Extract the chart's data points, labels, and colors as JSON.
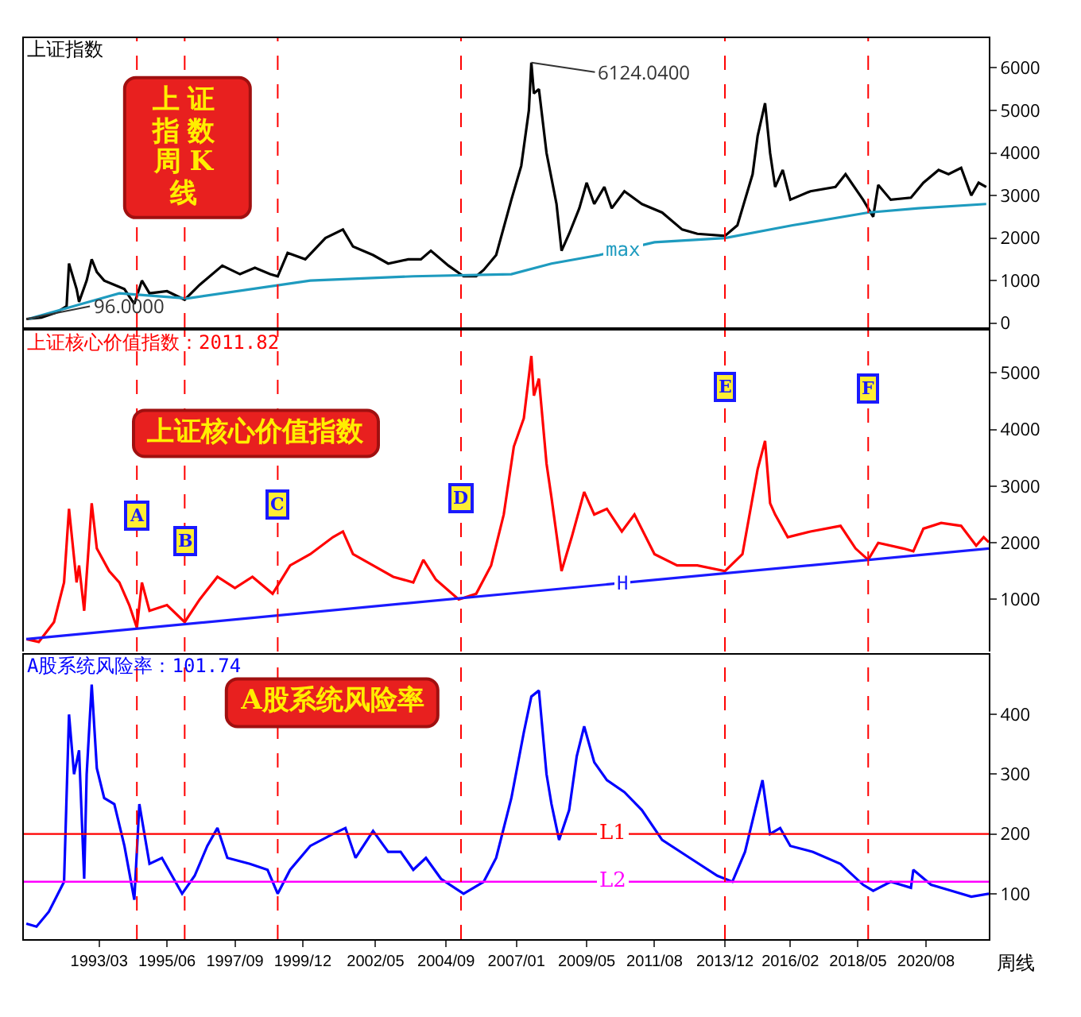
{
  "chart_data": [
    {
      "type": "line",
      "title": "上证指数",
      "xlim": [
        "1990-09",
        "2022-09"
      ],
      "tick_labels": "y",
      "ylim": [
        -100,
        6700
      ],
      "yticks": [
        0,
        1000,
        2000,
        3000,
        4000,
        5000,
        6000
      ],
      "series": [
        {
          "color": "#000000",
          "x": [
            "1990-10",
            "1991-04",
            "1991-10",
            "1992-02",
            "1992-03",
            "1992-06",
            "1992-07",
            "1992-10",
            "1992-12",
            "1993-02",
            "1993-05",
            "1993-09",
            "1994-01",
            "1994-05",
            "1994-08",
            "1994-11",
            "1995-06",
            "1996-01",
            "1996-07",
            "1997-04",
            "1997-11",
            "1998-05",
            "1998-11",
            "1999-02",
            "1999-06",
            "2000-01",
            "2000-09",
            "2001-04",
            "2001-08",
            "2002-04",
            "2002-10",
            "2003-06",
            "2003-11",
            "2004-03",
            "2004-10",
            "2005-04",
            "2005-09",
            "2005-12",
            "2006-05",
            "2006-11",
            "2007-03",
            "2007-06",
            "2007-07",
            "2007-08",
            "2007-10",
            "2008-01",
            "2008-05",
            "2008-07",
            "2008-10",
            "2009-02",
            "2009-05",
            "2009-08",
            "2009-12",
            "2010-03",
            "2010-08",
            "2011-03",
            "2011-11",
            "2012-07",
            "2013-01",
            "2013-12",
            "2014-05",
            "2014-11",
            "2015-01",
            "2015-04",
            "2015-06",
            "2015-08",
            "2015-11",
            "2016-02",
            "2016-10",
            "2017-08",
            "2017-12",
            "2018-07",
            "2018-11",
            "2019-01",
            "2019-06",
            "2020-02",
            "2020-07",
            "2021-01",
            "2021-05",
            "2021-10",
            "2022-02",
            "2022-05",
            "2022-08"
          ],
          "values": [
            96,
            130,
            250,
            400,
            1400,
            800,
            500,
            1000,
            1500,
            1200,
            1000,
            900,
            800,
            450,
            1000,
            700,
            750,
            550,
            900,
            1350,
            1150,
            1300,
            1150,
            1100,
            1650,
            1500,
            2000,
            2200,
            1800,
            1600,
            1400,
            1500,
            1500,
            1700,
            1350,
            1100,
            1100,
            1250,
            1600,
            2900,
            3700,
            5000,
            6124,
            5400,
            5500,
            4000,
            2800,
            1700,
            2100,
            2700,
            3300,
            2800,
            3200,
            2700,
            3100,
            2800,
            2600,
            2200,
            2100,
            2050,
            2300,
            3500,
            4400,
            5170,
            4000,
            3200,
            3600,
            2900,
            3100,
            3200,
            3500,
            2900,
            2500,
            3250,
            2900,
            2950,
            3300,
            3600,
            3500,
            3650,
            3000,
            3300,
            3200
          ]
        },
        {
          "name": "max",
          "color": "#1e9bbf",
          "x": [
            "1990-11",
            "1993-05",
            "1993-11",
            "1996-02",
            "2000-03",
            "2003-08",
            "2006-11",
            "2008-03",
            "2009-10",
            "2011-08",
            "2013-12",
            "2016-03",
            "2018-09",
            "2020-05",
            "2022-08"
          ],
          "values": [
            100,
            600,
            700,
            580,
            1000,
            1100,
            1150,
            1400,
            1600,
            1900,
            2000,
            2300,
            2600,
            2700,
            2800
          ]
        }
      ],
      "ref_lines": [
        {
          "axis": "x",
          "value": "1994-06",
          "color": "#ff0000",
          "line_style": "dashed"
        },
        {
          "axis": "x",
          "value": "1996-01",
          "color": "#ff0000",
          "line_style": "dashed"
        },
        {
          "axis": "x",
          "value": "1999-02",
          "color": "#ff0000",
          "line_style": "dashed"
        },
        {
          "axis": "x",
          "value": "2005-03",
          "color": "#ff0000",
          "line_style": "dashed"
        },
        {
          "axis": "x",
          "value": "2013-12",
          "color": "#ff0000",
          "line_style": "dashed"
        },
        {
          "axis": "x",
          "value": "2018-09",
          "color": "#ff0000",
          "line_style": "dashed"
        }
      ],
      "annotations": [
        {
          "text": "6124.0400",
          "x": "2007-07",
          "y": 6124
        },
        {
          "text": "96.0000",
          "x": "1990-10",
          "y": 96
        },
        "上证指数周K线"
      ]
    },
    {
      "type": "line",
      "title": "上证核心价值指数：2011.82",
      "xlim": [
        "1990-09",
        "2022-09"
      ],
      "tick_labels": "y",
      "ylim": [
        80,
        5750
      ],
      "yticks": [
        1000,
        2000,
        3000,
        4000,
        5000
      ],
      "series": [
        {
          "color": "#ff0000",
          "x": [
            "1990-10",
            "1991-03",
            "1991-09",
            "1992-01",
            "1992-03",
            "1992-06",
            "1992-07",
            "1992-09",
            "1992-12",
            "1993-02",
            "1993-07",
            "1993-11",
            "1994-03",
            "1994-06",
            "1994-08",
            "1994-11",
            "1995-06",
            "1996-01",
            "1996-07",
            "1997-02",
            "1997-09",
            "1998-04",
            "1998-12",
            "1999-07",
            "2000-03",
            "2000-12",
            "2001-04",
            "2001-08",
            "2002-04",
            "2002-12",
            "2003-08",
            "2003-12",
            "2004-05",
            "2005-02",
            "2005-09",
            "2006-03",
            "2006-08",
            "2006-12",
            "2007-04",
            "2007-07",
            "2007-08",
            "2007-10",
            "2008-01",
            "2008-03",
            "2008-07",
            "2008-11",
            "2009-04",
            "2009-08",
            "2010-01",
            "2010-07",
            "2010-12",
            "2011-08",
            "2012-05",
            "2013-01",
            "2013-12",
            "2014-07",
            "2014-11",
            "2015-01",
            "2015-04",
            "2015-06",
            "2015-08",
            "2016-01",
            "2016-10",
            "2017-10",
            "2018-04",
            "2018-09",
            "2019-01",
            "2019-11",
            "2020-03",
            "2020-07",
            "2021-02",
            "2021-10",
            "2022-04",
            "2022-07",
            "2022-09"
          ],
          "values": [
            300,
            250,
            600,
            1300,
            2600,
            1300,
            1600,
            800,
            2700,
            1900,
            1500,
            1300,
            900,
            500,
            1300,
            800,
            900,
            600,
            1000,
            1400,
            1200,
            1400,
            1100,
            1600,
            1800,
            2100,
            2200,
            1800,
            1600,
            1400,
            1300,
            1700,
            1350,
            1000,
            1100,
            1600,
            2500,
            3700,
            4200,
            5300,
            4600,
            4900,
            3400,
            2800,
            1500,
            2100,
            2900,
            2500,
            2600,
            2200,
            2500,
            1800,
            1600,
            1600,
            1500,
            1800,
            2800,
            3300,
            3800,
            2700,
            2500,
            2100,
            2200,
            2300,
            1900,
            1700,
            2000,
            1900,
            1850,
            2250,
            2350,
            2300,
            1950,
            2100,
            2010
          ]
        },
        {
          "name": "H",
          "color": "#1a1aff",
          "x": [
            "1990-10",
            "2022-09"
          ],
          "values": [
            300,
            1900
          ]
        }
      ],
      "ref_lines": [
        {
          "axis": "x",
          "value": "1994-06",
          "color": "#ff0000",
          "line_style": "dashed"
        },
        {
          "axis": "x",
          "value": "1996-01",
          "color": "#ff0000",
          "line_style": "dashed"
        },
        {
          "axis": "x",
          "value": "1999-02",
          "color": "#ff0000",
          "line_style": "dashed"
        },
        {
          "axis": "x",
          "value": "2005-03",
          "color": "#ff0000",
          "line_style": "dashed"
        },
        {
          "axis": "x",
          "value": "2013-12",
          "color": "#ff0000",
          "line_style": "dashed"
        },
        {
          "axis": "x",
          "value": "2018-09",
          "color": "#ff0000",
          "line_style": "dashed"
        }
      ],
      "annotations": [
        {
          "text": "A",
          "x": "1994-06",
          "y": 2480
        },
        {
          "text": "B",
          "x": "1996-01",
          "y": 2020
        },
        {
          "text": "C",
          "x": "1999-02",
          "y": 2680
        },
        {
          "text": "D",
          "x": "2005-03",
          "y": 2790
        },
        {
          "text": "E",
          "x": "2013-12",
          "y": 4750
        },
        {
          "text": "F",
          "x": "2018-09",
          "y": 4720
        },
        "上证核心价值指数"
      ]
    },
    {
      "type": "line",
      "title": "A股系统风险率：101.74",
      "xlim": [
        "1990-09",
        "2022-09"
      ],
      "xticks": [
        {
          "value": "1993-03",
          "label": "1993/03"
        },
        {
          "value": "1995-06",
          "label": "1995/06"
        },
        {
          "value": "1997-09",
          "label": "1997/09"
        },
        {
          "value": "1999-12",
          "label": "1999/12"
        },
        {
          "value": "2002-05",
          "label": "2002/05"
        },
        {
          "value": "2004-09",
          "label": "2004/09"
        },
        {
          "value": "2007-01",
          "label": "2007/01"
        },
        {
          "value": "2009-05",
          "label": "2009/05"
        },
        {
          "value": "2011-08",
          "label": "2011/08"
        },
        {
          "value": "2013-12",
          "label": "2013/12"
        },
        {
          "value": "2016-02",
          "label": "2016/02"
        },
        {
          "value": "2018-05",
          "label": "2018/05"
        },
        {
          "value": "2020-08",
          "label": "2020/08"
        }
      ],
      "ylim": [
        24,
        500
      ],
      "yticks": [
        100,
        200,
        300,
        400
      ],
      "series": [
        {
          "color": "#0000ff",
          "x": [
            "1990-10",
            "1991-02",
            "1991-07",
            "1992-01",
            "1992-03",
            "1992-05",
            "1992-07",
            "1992-09",
            "1992-10",
            "1992-12",
            "1993-02",
            "1993-05",
            "1993-09",
            "1994-01",
            "1994-05",
            "1994-07",
            "1994-11",
            "1995-04",
            "1995-12",
            "1996-05",
            "1996-10",
            "1997-02",
            "1997-06",
            "1998-03",
            "1998-10",
            "1999-02",
            "1999-07",
            "2000-03",
            "2000-12",
            "2001-05",
            "2001-09",
            "2002-04",
            "2002-10",
            "2003-03",
            "2003-08",
            "2004-01",
            "2004-07",
            "2005-04",
            "2005-12",
            "2006-05",
            "2006-11",
            "2007-04",
            "2007-07",
            "2007-10",
            "2008-01",
            "2008-03",
            "2008-06",
            "2008-10",
            "2009-01",
            "2009-04",
            "2009-08",
            "2010-01",
            "2010-08",
            "2011-03",
            "2011-11",
            "2012-10",
            "2013-09",
            "2014-03",
            "2014-08",
            "2014-12",
            "2015-03",
            "2015-06",
            "2015-10",
            "2016-02",
            "2016-11",
            "2017-10",
            "2018-07",
            "2018-11",
            "2019-06",
            "2020-02",
            "2020-03",
            "2020-10",
            "2021-06",
            "2022-02",
            "2022-09"
          ],
          "values": [
            50,
            45,
            70,
            120,
            400,
            300,
            340,
            125,
            300,
            450,
            310,
            260,
            250,
            180,
            90,
            250,
            150,
            160,
            100,
            130,
            180,
            210,
            160,
            150,
            140,
            100,
            140,
            180,
            200,
            210,
            160,
            205,
            170,
            170,
            140,
            160,
            125,
            100,
            120,
            160,
            260,
            370,
            430,
            440,
            300,
            250,
            190,
            240,
            330,
            380,
            320,
            290,
            270,
            240,
            190,
            160,
            130,
            120,
            170,
            240,
            290,
            200,
            210,
            180,
            170,
            150,
            115,
            105,
            120,
            110,
            140,
            115,
            105,
            95,
            100
          ]
        }
      ],
      "ref_lines": [
        {
          "axis": "y",
          "value": 200,
          "label": "L1",
          "color": "#ff0000",
          "line_style": "solid"
        },
        {
          "axis": "y",
          "value": 120,
          "label": "L2",
          "color": "#ff00ff",
          "line_style": "solid"
        },
        {
          "axis": "x",
          "value": "1994-06",
          "color": "#ff0000",
          "line_style": "dashed"
        },
        {
          "axis": "x",
          "value": "1996-01",
          "color": "#ff0000",
          "line_style": "dashed"
        },
        {
          "axis": "x",
          "value": "1999-02",
          "color": "#ff0000",
          "line_style": "dashed"
        },
        {
          "axis": "x",
          "value": "2005-03",
          "color": "#ff0000",
          "line_style": "dashed"
        },
        {
          "axis": "x",
          "value": "2013-12",
          "color": "#ff0000",
          "line_style": "dashed"
        },
        {
          "axis": "x",
          "value": "2018-09",
          "color": "#ff0000",
          "line_style": "dashed"
        }
      ],
      "annotations": [
        "A股系统风险率",
        "周线"
      ]
    }
  ]
}
